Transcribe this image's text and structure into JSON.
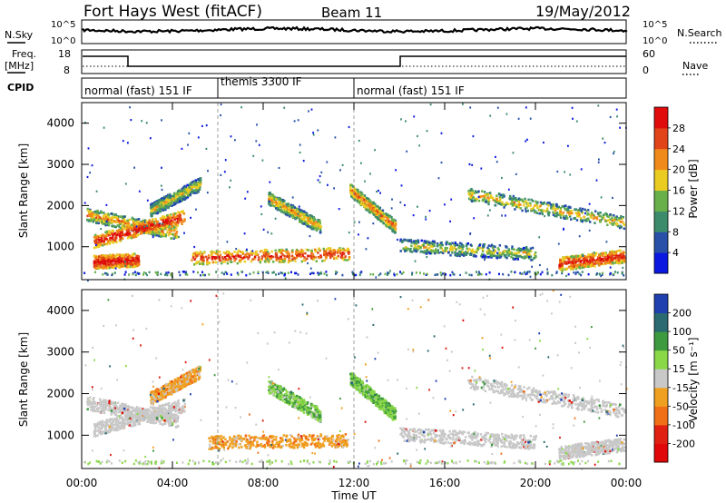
{
  "header": {
    "station": "Fort Hays West (fitACF)",
    "beam": "Beam 11",
    "date": "19/May/2012"
  },
  "strips": {
    "nsky_label": "N.Sky",
    "nsearch_label": "N.Search",
    "nsky_ticks": [
      "10^5",
      "10^0"
    ],
    "nsearch_ticks": [
      "10^5",
      "10^0"
    ],
    "freq_label_1": "Freq.",
    "freq_label_2": "[MHz]",
    "freq_ticks": [
      "18",
      "8"
    ],
    "nave_label": "Nave",
    "nave_ticks": [
      "60",
      "0"
    ],
    "cpid_label": "CPID",
    "cpid_segments": [
      {
        "label": "normal (fast) 151 IF",
        "start_hour": 0,
        "end_hour": 6
      },
      {
        "label": "themis 3300 IF",
        "start_hour": 6,
        "end_hour": 12
      },
      {
        "label": "normal (fast) 151 IF",
        "start_hour": 12,
        "end_hour": 24
      }
    ]
  },
  "chart_data": [
    {
      "type": "heatmap",
      "title": "",
      "xlabel": "",
      "ylabel": "Slant Range [km]",
      "ylim": [
        200,
        4500
      ],
      "xlim": [
        0,
        24
      ],
      "y_ticks": [
        "1000",
        "2000",
        "3000",
        "4000"
      ],
      "colorbar_label": "Power [dB]",
      "colorbar_ticks": [
        "4",
        "8",
        "12",
        "16",
        "20",
        "24",
        "28"
      ],
      "colorbar_colors": [
        "#0b18e0",
        "#2850a8",
        "#3c8c6c",
        "#6ab04a",
        "#eacc20",
        "#f08a1a",
        "#e04418",
        "#e00c0c"
      ],
      "echo_bands": [
        {
          "name": "",
          "t0": 0.2,
          "t1": 4.2,
          "r0": 1800,
          "r1": 1350,
          "level": 0.4
        },
        {
          "name": "",
          "t0": 0.5,
          "t1": 4.5,
          "r0": 1150,
          "r1": 1750,
          "level": 0.75
        },
        {
          "name": "",
          "t0": 3.0,
          "t1": 5.2,
          "r0": 1900,
          "r1": 2550,
          "level": 0.25
        },
        {
          "name": "",
          "t0": 4.8,
          "t1": 11.8,
          "r0": 750,
          "r1": 850,
          "level": 0.65
        },
        {
          "name": "",
          "t0": 8.2,
          "t1": 10.5,
          "r0": 2200,
          "r1": 1500,
          "level": 0.35
        },
        {
          "name": "",
          "t0": 11.8,
          "t1": 13.8,
          "r0": 2400,
          "r1": 1500,
          "level": 0.45
        },
        {
          "name": "",
          "t0": 14.0,
          "t1": 20.0,
          "r0": 1050,
          "r1": 850,
          "level": 0.2
        },
        {
          "name": "",
          "t0": 17.0,
          "t1": 23.9,
          "r0": 2300,
          "r1": 1600,
          "level": 0.3
        },
        {
          "name": "",
          "t0": 21.0,
          "t1": 23.9,
          "r0": 600,
          "r1": 800,
          "level": 0.7
        },
        {
          "name": "",
          "t0": 0.5,
          "t1": 2.5,
          "r0": 650,
          "r1": 700,
          "level": 0.8
        }
      ]
    },
    {
      "type": "heatmap",
      "title": "",
      "xlabel": "Time UT",
      "ylabel": "Slant Range [km]",
      "ylim": [
        200,
        4500
      ],
      "xlim": [
        0,
        24
      ],
      "x_ticks": [
        "00:00",
        "04:00",
        "08:00",
        "12:00",
        "16:00",
        "20:00",
        "00:00"
      ],
      "y_ticks": [
        "1000",
        "2000",
        "3000",
        "4000"
      ],
      "colorbar_label": "Velocity [m s⁻¹]",
      "colorbar_ticks": [
        "200",
        "100",
        "50",
        "15",
        "-15",
        "-50",
        "-100",
        "-200"
      ],
      "colorbar_colors": [
        "#2040b0",
        "#2a6a70",
        "#3e9a3e",
        "#8ad848",
        "#c8c8c8",
        "#f0a020",
        "#f07018",
        "#e02010",
        "#e00808"
      ],
      "echo_bands": [
        {
          "name": "",
          "t0": 0.2,
          "t1": 4.2,
          "r0": 1800,
          "r1": 1350,
          "level": 0.5
        },
        {
          "name": "",
          "t0": 0.5,
          "t1": 4.5,
          "r0": 1150,
          "r1": 1750,
          "level": 0.5
        },
        {
          "name": "",
          "t0": 3.0,
          "t1": 5.2,
          "r0": 1900,
          "r1": 2550,
          "level": 0.72
        },
        {
          "name": "",
          "t0": 5.5,
          "t1": 11.7,
          "r0": 850,
          "r1": 900,
          "level": 0.74
        },
        {
          "name": "",
          "t0": 8.2,
          "t1": 10.5,
          "r0": 2200,
          "r1": 1500,
          "level": 0.3
        },
        {
          "name": "",
          "t0": 11.8,
          "t1": 13.8,
          "r0": 2400,
          "r1": 1500,
          "level": 0.28
        },
        {
          "name": "",
          "t0": 14.0,
          "t1": 20.0,
          "r0": 1050,
          "r1": 850,
          "level": 0.5
        },
        {
          "name": "",
          "t0": 17.0,
          "t1": 23.9,
          "r0": 2300,
          "r1": 1600,
          "level": 0.5
        },
        {
          "name": "",
          "t0": 21.0,
          "t1": 23.9,
          "r0": 600,
          "r1": 800,
          "level": 0.5
        }
      ]
    }
  ]
}
